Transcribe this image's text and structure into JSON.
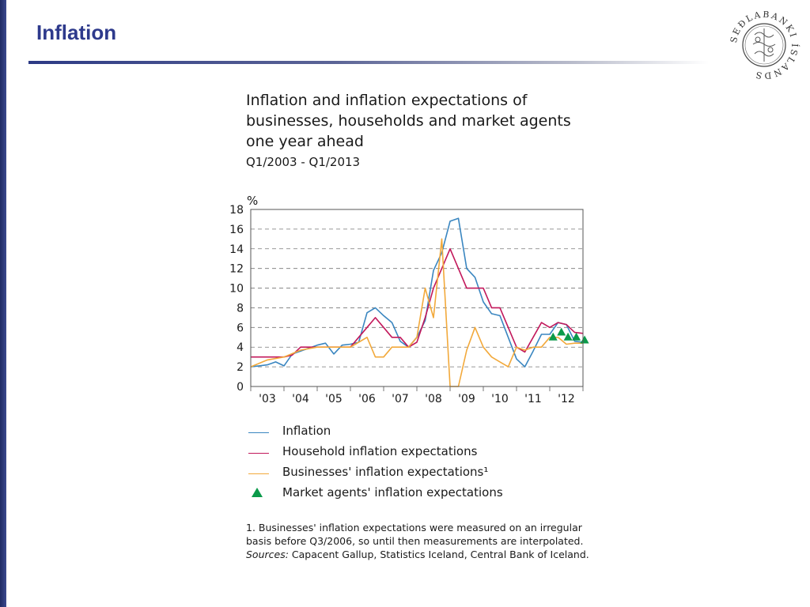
{
  "slide": {
    "title": "Inflation"
  },
  "logo": {
    "text": "SEÐLABANKI ÍSLANDS",
    "icon": "central-bank-seal"
  },
  "chart_heading": {
    "title_lines": [
      "Inflation and inflation expectations of",
      "businesses, households and market agents",
      "one year ahead"
    ],
    "period": "Q1/2003 - Q1/2013"
  },
  "chart_data": {
    "type": "line",
    "title": "Inflation and inflation expectations of businesses, households and market agents one year ahead",
    "subtitle": "Q1/2003 - Q1/2013",
    "unit_label": "%",
    "ylim": [
      0,
      18
    ],
    "yticks": [
      0,
      2,
      4,
      6,
      8,
      10,
      12,
      14,
      16,
      18
    ],
    "xlim": [
      2003.0,
      2013.0
    ],
    "xtick_labels": [
      "'03",
      "'04",
      "'05",
      "'06",
      "'07",
      "'08",
      "'09",
      "'10",
      "'11",
      "'12"
    ],
    "grid": "horizontal-dashed",
    "colors": {
      "inflation": "#3a86c0",
      "household": "#c2185b",
      "businesses": "#f2a93b",
      "market": "#0b9a4a"
    },
    "series": [
      {
        "key": "inflation",
        "name": "Inflation",
        "points": [
          [
            2003.0,
            2.0
          ],
          [
            2003.25,
            2.1
          ],
          [
            2003.5,
            2.2
          ],
          [
            2003.75,
            2.5
          ],
          [
            2004.0,
            2.1
          ],
          [
            2004.25,
            3.3
          ],
          [
            2004.5,
            3.6
          ],
          [
            2004.75,
            3.9
          ],
          [
            2005.0,
            4.2
          ],
          [
            2005.25,
            4.4
          ],
          [
            2005.5,
            3.3
          ],
          [
            2005.75,
            4.2
          ],
          [
            2006.0,
            4.3
          ],
          [
            2006.25,
            4.5
          ],
          [
            2006.5,
            7.5
          ],
          [
            2006.75,
            8.0
          ],
          [
            2007.0,
            7.2
          ],
          [
            2007.25,
            6.5
          ],
          [
            2007.5,
            4.6
          ],
          [
            2007.75,
            4.0
          ],
          [
            2008.0,
            5.0
          ],
          [
            2008.25,
            6.7
          ],
          [
            2008.5,
            11.8
          ],
          [
            2008.75,
            13.6
          ],
          [
            2009.0,
            16.8
          ],
          [
            2009.25,
            17.1
          ],
          [
            2009.5,
            12.0
          ],
          [
            2009.75,
            11.1
          ],
          [
            2010.0,
            8.6
          ],
          [
            2010.25,
            7.4
          ],
          [
            2010.5,
            7.2
          ],
          [
            2010.75,
            5.0
          ],
          [
            2011.0,
            2.8
          ],
          [
            2011.25,
            2.0
          ],
          [
            2011.5,
            3.6
          ],
          [
            2011.75,
            5.3
          ],
          [
            2012.0,
            5.3
          ],
          [
            2012.25,
            6.5
          ],
          [
            2012.5,
            6.3
          ],
          [
            2012.75,
            4.6
          ],
          [
            2013.0,
            4.5
          ]
        ]
      },
      {
        "key": "household",
        "name": "Household inflation expectations",
        "points": [
          [
            2003.0,
            3.0
          ],
          [
            2004.0,
            3.0
          ],
          [
            2004.25,
            3.2
          ],
          [
            2004.5,
            4.0
          ],
          [
            2005.0,
            4.0
          ],
          [
            2006.0,
            4.0
          ],
          [
            2006.5,
            6.0
          ],
          [
            2006.75,
            7.0
          ],
          [
            2007.0,
            6.0
          ],
          [
            2007.25,
            5.0
          ],
          [
            2007.5,
            5.0
          ],
          [
            2007.75,
            4.0
          ],
          [
            2008.0,
            4.5
          ],
          [
            2008.25,
            7.0
          ],
          [
            2008.5,
            10.0
          ],
          [
            2008.75,
            12.0
          ],
          [
            2009.0,
            14.0
          ],
          [
            2009.25,
            12.0
          ],
          [
            2009.5,
            10.0
          ],
          [
            2010.0,
            10.0
          ],
          [
            2010.25,
            8.0
          ],
          [
            2010.5,
            8.0
          ],
          [
            2010.75,
            6.0
          ],
          [
            2011.0,
            4.0
          ],
          [
            2011.25,
            3.5
          ],
          [
            2011.5,
            5.0
          ],
          [
            2011.75,
            6.5
          ],
          [
            2012.0,
            6.0
          ],
          [
            2012.25,
            6.5
          ],
          [
            2012.5,
            6.3
          ],
          [
            2012.75,
            5.5
          ],
          [
            2013.0,
            5.4
          ]
        ]
      },
      {
        "key": "businesses",
        "name": "Businesses' inflation expectations¹",
        "points": [
          [
            2003.0,
            2.0
          ],
          [
            2003.5,
            2.7
          ],
          [
            2004.0,
            3.0
          ],
          [
            2004.5,
            3.7
          ],
          [
            2005.0,
            4.0
          ],
          [
            2006.0,
            4.0
          ],
          [
            2006.25,
            4.5
          ],
          [
            2006.5,
            5.0
          ],
          [
            2006.75,
            3.0
          ],
          [
            2007.0,
            3.0
          ],
          [
            2007.25,
            4.0
          ],
          [
            2007.5,
            4.0
          ],
          [
            2007.75,
            4.0
          ],
          [
            2008.0,
            5.0
          ],
          [
            2008.25,
            10.0
          ],
          [
            2008.5,
            7.0
          ],
          [
            2008.75,
            15.0
          ],
          [
            2009.0,
            0.0
          ],
          [
            2009.25,
            0.0
          ],
          [
            2009.5,
            3.7
          ],
          [
            2009.75,
            6.0
          ],
          [
            2010.0,
            4.0
          ],
          [
            2010.25,
            3.0
          ],
          [
            2010.5,
            2.5
          ],
          [
            2010.75,
            2.0
          ],
          [
            2011.0,
            4.0
          ],
          [
            2011.25,
            3.7
          ],
          [
            2011.5,
            4.0
          ],
          [
            2011.75,
            4.0
          ],
          [
            2012.0,
            5.0
          ],
          [
            2012.25,
            5.0
          ],
          [
            2012.5,
            4.3
          ],
          [
            2012.75,
            4.4
          ],
          [
            2013.0,
            4.4
          ]
        ]
      },
      {
        "key": "market",
        "name": "Market agents' inflation expectations",
        "marker": "triangle",
        "points": [
          [
            2012.1,
            5.0
          ],
          [
            2012.35,
            5.5
          ],
          [
            2012.55,
            5.0
          ],
          [
            2012.8,
            5.0
          ],
          [
            2013.05,
            4.7
          ]
        ]
      }
    ]
  },
  "legend": {
    "items": [
      {
        "label": "Inflation",
        "swatch": "line",
        "color": "#3a86c0"
      },
      {
        "label": "Household inflation expectations",
        "swatch": "line",
        "color": "#c2185b"
      },
      {
        "label": "Businesses' inflation expectations¹",
        "swatch": "line",
        "color": "#f2a93b"
      },
      {
        "label": "Market agents' inflation expectations",
        "swatch": "triangle",
        "color": "#0b9a4a"
      }
    ]
  },
  "footnote": {
    "note_lines": [
      "1. Businesses' inflation expectations were measured on an irregular",
      "basis before Q3/2006, so until then measurements are interpolated."
    ],
    "sources_lead": "Sources:",
    "sources_text": " Capacent Gallup, Statistics Iceland, Central Bank of Iceland."
  }
}
